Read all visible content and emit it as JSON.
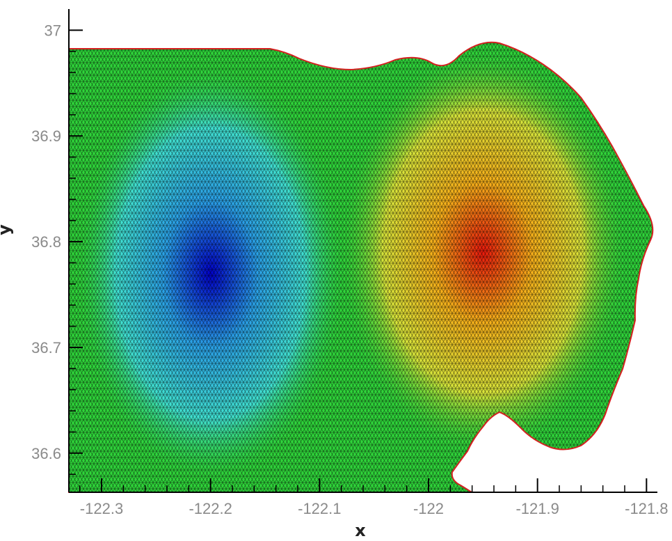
{
  "chart_data": {
    "type": "heatmap",
    "title": "",
    "xlabel": "x",
    "ylabel": "y",
    "xlim": [
      -122.33,
      -121.79
    ],
    "ylim": [
      36.563,
      37.02
    ],
    "xticks": [
      -122.3,
      -122.2,
      -122.1,
      -122,
      -121.9,
      -121.8
    ],
    "xtick_labels": [
      "-122.3",
      "-122.2",
      "-122.1",
      "-122",
      "-121.9",
      "-121.8"
    ],
    "yticks": [
      36.6,
      36.7,
      36.8,
      36.9,
      37
    ],
    "ytick_labels": [
      "36.6",
      "36.7",
      "36.8",
      "36.9",
      "37"
    ],
    "grid": false,
    "mesh": "triangular",
    "colormap": [
      "#0000c8",
      "#2aa0e6",
      "#40e0d0",
      "#2fd43a",
      "#3cd23c",
      "#d8e43a",
      "#f6b01a",
      "#e8180c"
    ],
    "features": [
      {
        "kind": "minimum",
        "x": -122.2,
        "y": 36.77,
        "color": "#0000c8"
      },
      {
        "kind": "maximum",
        "x": -121.95,
        "y": 36.79,
        "color": "#e8180c"
      }
    ],
    "boundary_color": "#d42020"
  }
}
